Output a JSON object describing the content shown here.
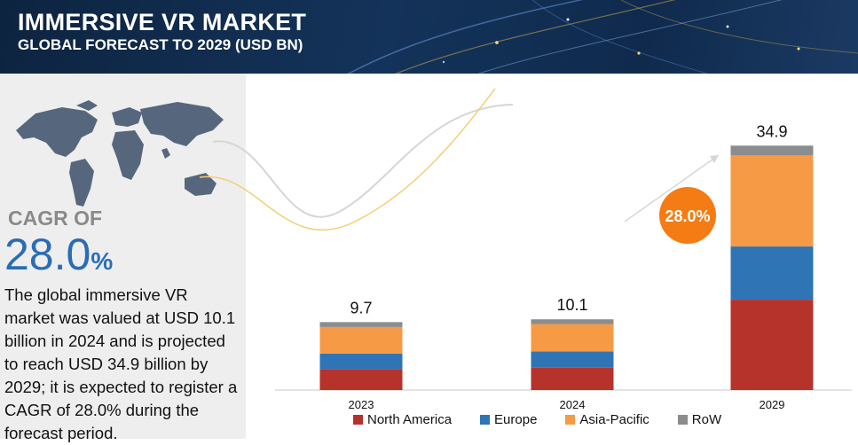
{
  "header": {
    "title": "IMMERSIVE VR MARKET",
    "subtitle": "GLOBAL FORECAST TO 2029 (USD BN)"
  },
  "summary": {
    "cagr_label": "CAGR OF",
    "cagr_value": "28.0",
    "cagr_unit": "%",
    "description": "The global immersive VR market was valued at USD 10.1 billion in 2024 and is projected to reach USD 34.9 billion by 2029; it is expected to register a CAGR of 28.0% during the forecast period."
  },
  "chart_data": {
    "type": "bar",
    "stacked": true,
    "categories": [
      "2023",
      "2024",
      "2029"
    ],
    "totals": [
      "9.7",
      "10.1",
      "34.9"
    ],
    "series": [
      {
        "name": "North America",
        "color": "#b5332b",
        "values": [
          3.0,
          3.2,
          12.9
        ]
      },
      {
        "name": "Europe",
        "color": "#2f74b5",
        "values": [
          2.2,
          2.3,
          7.6
        ]
      },
      {
        "name": "Asia-Pacific",
        "color": "#f79a45",
        "values": [
          3.8,
          3.9,
          13.0
        ]
      },
      {
        "name": "RoW",
        "color": "#8c8c8c",
        "values": [
          0.7,
          0.7,
          1.4
        ]
      }
    ],
    "annotation": "28.0%",
    "annotation_color": "#f57c14",
    "ylim": [
      0,
      40
    ],
    "grid": false,
    "legend_position": "bottom"
  }
}
